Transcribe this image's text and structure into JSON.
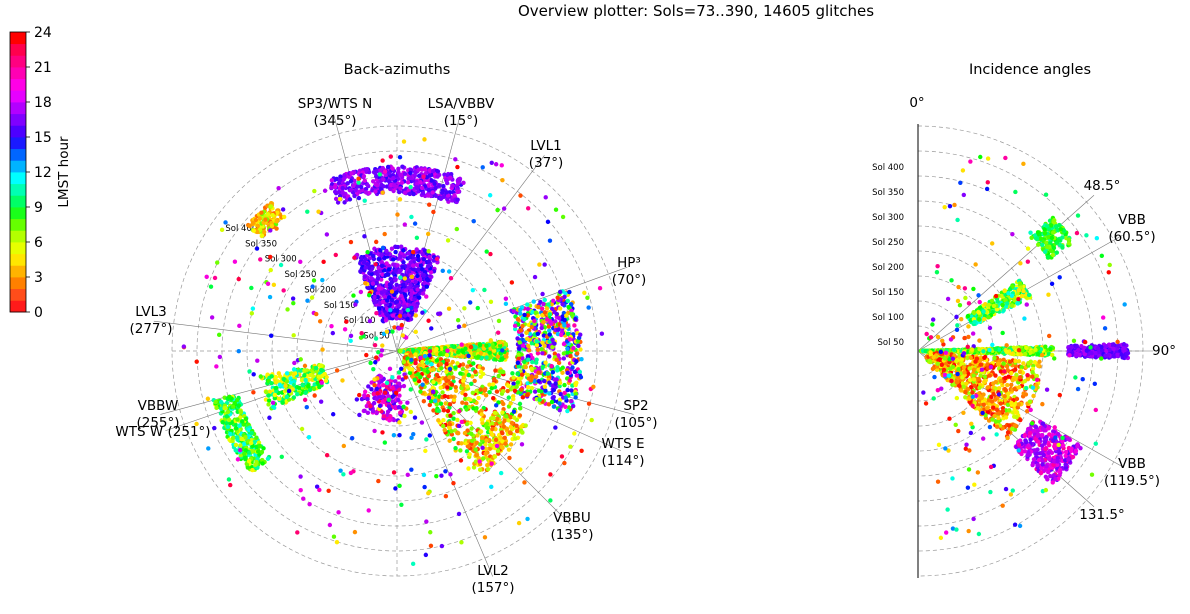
{
  "title": "Overview plotter: Sols=73..390, 14605 glitches",
  "colorbar": {
    "label": "LMST hour",
    "ticks": [
      "0",
      "3",
      "6",
      "9",
      "12",
      "15",
      "18",
      "21",
      "24"
    ],
    "colors": [
      "#ff1a1a",
      "#ff4d1a",
      "#ff8000",
      "#ffb300",
      "#ffe600",
      "#e6ff00",
      "#b3ff00",
      "#66ff00",
      "#1aff1a",
      "#00ff66",
      "#00ffb3",
      "#00ffff",
      "#00b3ff",
      "#0066ff",
      "#1a1aff",
      "#4d00ff",
      "#8000ff",
      "#b300ff",
      "#e600ff",
      "#ff00e6",
      "#ff00b3",
      "#ff0080",
      "#ff004d",
      "#ff0000"
    ]
  },
  "panels": {
    "backazimuth": {
      "title": "Back-azimuths"
    },
    "incidence": {
      "title": "Incidence angles"
    }
  },
  "sol_rings": [
    "Sol 50",
    "Sol 100",
    "Sol 150",
    "Sol 200",
    "Sol 250",
    "Sol 300",
    "Sol 350",
    "Sol 400"
  ],
  "baz_labels": [
    {
      "id": "sp3-wts-n",
      "l1": "SP3/WTS N",
      "l2": "(345°)",
      "deg": 345
    },
    {
      "id": "lsa-vbbv",
      "l1": "LSA/VBBV",
      "l2": "(15°)",
      "deg": 15
    },
    {
      "id": "lvl1",
      "l1": "LVL1",
      "l2": "(37°)",
      "deg": 37
    },
    {
      "id": "hp3",
      "l1": "HP³",
      "l2": "(70°)",
      "deg": 70
    },
    {
      "id": "sp2",
      "l1": "SP2",
      "l2": "(105°)",
      "deg": 105
    },
    {
      "id": "wts-e",
      "l1": "WTS E",
      "l2": "(114°)",
      "deg": 114
    },
    {
      "id": "vbbu",
      "l1": "VBBU",
      "l2": "(135°)",
      "deg": 135
    },
    {
      "id": "lvl2",
      "l1": "LVL2",
      "l2": "(157°)",
      "deg": 157
    },
    {
      "id": "vbbw",
      "l1": "VBBW",
      "l2": "(255°)",
      "deg": 255
    },
    {
      "id": "wts-w",
      "l1": "WTS W (251°)",
      "l2": "",
      "deg": 251
    },
    {
      "id": "lvl3",
      "l1": "LVL3",
      "l2": "(277°)",
      "deg": 277
    }
  ],
  "inc_labels": [
    {
      "id": "zero",
      "l1": "0°",
      "l2": ""
    },
    {
      "id": "d48",
      "l1": "48.5°",
      "l2": ""
    },
    {
      "id": "vbb-60",
      "l1": "VBB",
      "l2": "(60.5°)"
    },
    {
      "id": "d90",
      "l1": "90°",
      "l2": ""
    },
    {
      "id": "vbb-119",
      "l1": "VBB",
      "l2": "(119.5°)"
    },
    {
      "id": "d131",
      "l1": "131.5°",
      "l2": ""
    }
  ],
  "chart_data": [
    {
      "type": "scatter",
      "projection": "polar",
      "title": "Back-azimuths",
      "subtitle": "Overview plotter: Sols=73..390, 14605 glitches",
      "angle": "back-azimuth (deg, 0 = north, clockwise)",
      "radius": "sol",
      "radius_range": [
        0,
        450
      ],
      "color": "LMST hour",
      "color_range": [
        0,
        24
      ],
      "reference_directions": [
        {
          "label": "SP3/WTS N",
          "deg": 345
        },
        {
          "label": "LSA/VBBV",
          "deg": 15
        },
        {
          "label": "LVL1",
          "deg": 37
        },
        {
          "label": "HP³",
          "deg": 70
        },
        {
          "label": "SP2",
          "deg": 105
        },
        {
          "label": "WTS E",
          "deg": 114
        },
        {
          "label": "VBBU",
          "deg": 135
        },
        {
          "label": "LVL2",
          "deg": 157
        },
        {
          "label": "WTS W",
          "deg": 251
        },
        {
          "label": "VBBW",
          "deg": 255
        },
        {
          "label": "LVL3",
          "deg": 277
        }
      ],
      "clusters": [
        {
          "baz_from": -25,
          "baz_to": 25,
          "sol_from": 65,
          "sol_to": 210,
          "hour_from": 15,
          "hour_to": 20,
          "n": 700
        },
        {
          "baz_from": -22,
          "baz_to": 22,
          "sol_from": 315,
          "sol_to": 370,
          "hour_from": 16,
          "hour_to": 20,
          "n": 420
        },
        {
          "baz_from": 85,
          "baz_to": 95,
          "sol_from": 5,
          "sol_to": 220,
          "hour_from": 3,
          "hour_to": 11,
          "n": 900
        },
        {
          "baz_from": 70,
          "baz_to": 110,
          "sol_from": 240,
          "sol_to": 370,
          "hour_from": 1,
          "hour_to": 22,
          "n": 600
        },
        {
          "baz_from": 100,
          "baz_to": 150,
          "sol_from": 20,
          "sol_to": 280,
          "hour_from": 0,
          "hour_to": 10,
          "n": 500
        },
        {
          "baz_from": 120,
          "baz_to": 145,
          "sol_from": 230,
          "sol_to": 300,
          "hour_from": 1,
          "hour_to": 8,
          "n": 160
        },
        {
          "baz_from": 175,
          "baz_to": 220,
          "sol_from": 60,
          "sol_to": 140,
          "hour_from": 16,
          "hour_to": 23,
          "n": 150
        },
        {
          "baz_from": 230,
          "baz_to": 255,
          "sol_from": 330,
          "sol_to": 380,
          "hour_from": 6,
          "hour_to": 12,
          "n": 300
        },
        {
          "baz_from": 245,
          "baz_to": 260,
          "sol_from": 150,
          "sol_to": 280,
          "hour_from": 5,
          "hour_to": 12,
          "n": 200
        },
        {
          "baz_from": 310,
          "baz_to": 320,
          "sol_from": 350,
          "sol_to": 390,
          "hour_from": 2,
          "hour_to": 8,
          "n": 120
        }
      ],
      "scattered_points": 400
    },
    {
      "type": "scatter",
      "projection": "polar",
      "title": "Incidence angles",
      "angle": "incidence angle (deg, 0 = up, 0–180)",
      "radius": "sol",
      "radius_range": [
        0,
        450
      ],
      "color": "LMST hour",
      "color_range": [
        0,
        24
      ],
      "reference_angles": [
        {
          "label": "48.5°",
          "deg": 48.5
        },
        {
          "label": "VBB (60.5°)",
          "deg": 60.5
        },
        {
          "label": "90°",
          "deg": 90
        },
        {
          "label": "VBB (119.5°)",
          "deg": 119.5
        },
        {
          "label": "131.5°",
          "deg": 131.5
        }
      ],
      "clusters": [
        {
          "inc_from": 88,
          "inc_to": 92,
          "sol_from": 5,
          "sol_to": 270,
          "hour_from": 5,
          "hour_to": 11,
          "n": 500
        },
        {
          "inc_from": 88,
          "inc_to": 92,
          "sol_from": 300,
          "sol_to": 420,
          "hour_from": 16,
          "hour_to": 19,
          "n": 260
        },
        {
          "inc_from": 45,
          "inc_to": 55,
          "sol_from": 320,
          "sol_to": 380,
          "hour_from": 7,
          "hour_to": 11,
          "n": 150
        },
        {
          "inc_from": 55,
          "inc_to": 65,
          "sol_from": 120,
          "sol_to": 250,
          "hour_from": 5,
          "hour_to": 12,
          "n": 250
        },
        {
          "inc_from": 95,
          "inc_to": 135,
          "sol_from": 20,
          "sol_to": 250,
          "hour_from": 0,
          "hour_to": 8,
          "n": 700
        },
        {
          "inc_from": 120,
          "inc_to": 135,
          "sol_from": 270,
          "sol_to": 380,
          "hour_from": 17,
          "hour_to": 22,
          "n": 300
        }
      ],
      "scattered_points": 200
    }
  ]
}
